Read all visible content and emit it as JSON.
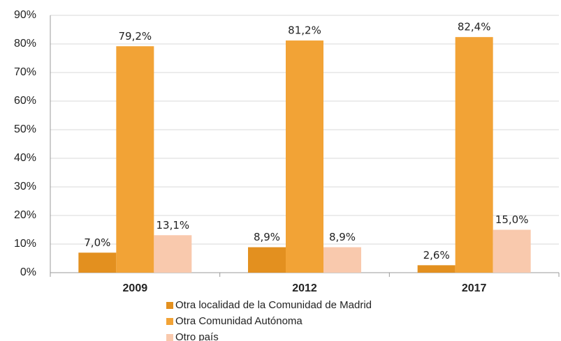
{
  "chart_data": {
    "type": "bar",
    "categories": [
      "2009",
      "2012",
      "2017"
    ],
    "series": [
      {
        "name": "Otra localidad de la Comunidad de Madrid",
        "color": "#e3901f",
        "values": [
          7.0,
          8.9,
          2.6
        ],
        "value_labels": [
          "7,0%",
          "8,9%",
          "2,6%"
        ]
      },
      {
        "name": "Otra Comunidad Autónoma",
        "color": "#f2a336",
        "values": [
          79.2,
          81.2,
          82.4
        ],
        "value_labels": [
          "79,2%",
          "81,2%",
          "82,4%"
        ]
      },
      {
        "name": "Otro país",
        "color": "#f9c9ad",
        "values": [
          13.1,
          8.9,
          15.0
        ],
        "value_labels": [
          "13,1%",
          "8,9%",
          "15,0%"
        ]
      }
    ],
    "ylim": [
      0,
      90
    ],
    "yticks": [
      {
        "value": 0,
        "label": "0%"
      },
      {
        "value": 10,
        "label": "10%"
      },
      {
        "value": 20,
        "label": "20%"
      },
      {
        "value": 30,
        "label": "30%"
      },
      {
        "value": 40,
        "label": "40%"
      },
      {
        "value": 50,
        "label": "50%"
      },
      {
        "value": 60,
        "label": "60%"
      },
      {
        "value": 70,
        "label": "70%"
      },
      {
        "value": 80,
        "label": "80%"
      },
      {
        "value": 90,
        "label": "90%"
      }
    ],
    "grid": true
  }
}
